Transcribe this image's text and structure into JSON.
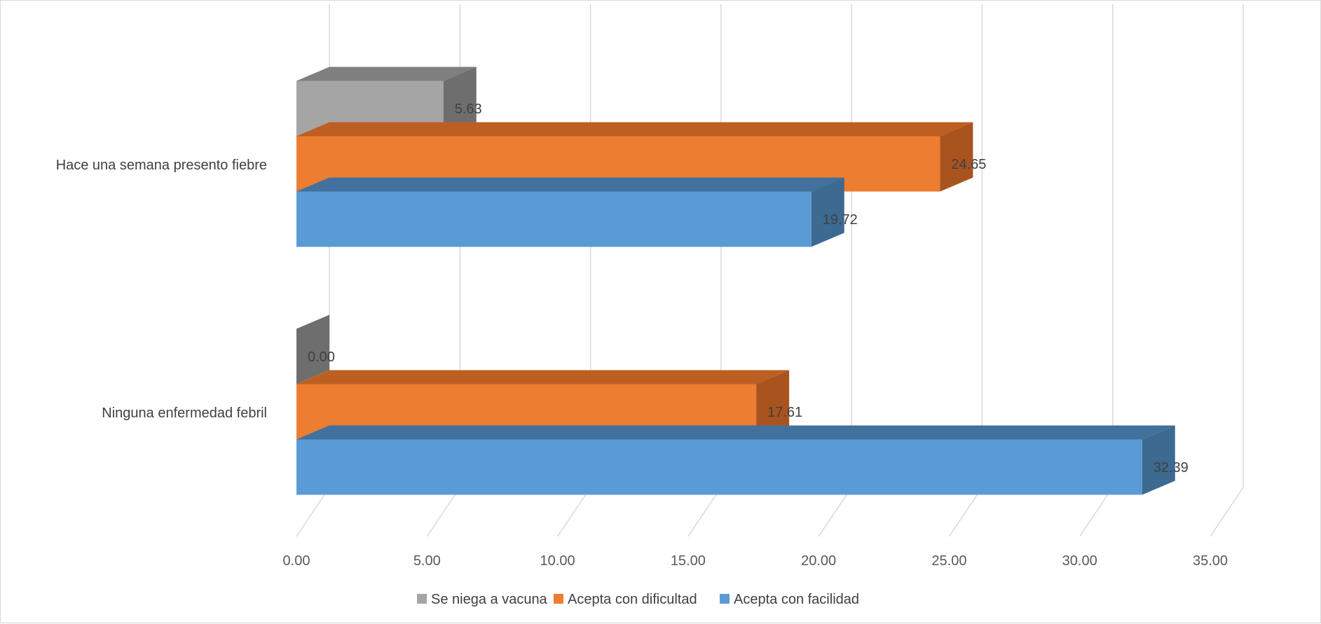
{
  "chart_data": {
    "type": "bar",
    "orientation": "horizontal",
    "style": "3d-clustered",
    "categories": [
      "Ninguna enfermedad febril",
      "Hace una semana presento fiebre"
    ],
    "series": [
      {
        "name": "Acepta con facilidad",
        "values": [
          32.39,
          19.72
        ],
        "labels": [
          "32.39",
          "19.72"
        ],
        "color": "#5B9BD5",
        "side_color": "#3D6A91",
        "top_color": "#41719C"
      },
      {
        "name": "Acepta con dificultad",
        "values": [
          17.61,
          24.65
        ],
        "labels": [
          "17.61",
          "24.65"
        ],
        "color": "#ED7D31",
        "side_color": "#A9531F",
        "top_color": "#BD5F22"
      },
      {
        "name": "Se niega a vacuna",
        "values": [
          0.0,
          5.63
        ],
        "labels": [
          "0.00",
          "5.63"
        ],
        "color": "#A5A5A5",
        "side_color": "#6E6E6E",
        "top_color": "#7F7F7F"
      }
    ],
    "xlim": [
      0,
      35
    ],
    "xticks": [
      0,
      5,
      10,
      15,
      20,
      25,
      30,
      35
    ],
    "xtick_labels": [
      "0.00",
      "5.00",
      "10.00",
      "15.00",
      "20.00",
      "25.00",
      "30.00",
      "35.00"
    ],
    "grid": true,
    "gridline_color": "#D9D9D9",
    "legend_position": "bottom",
    "legend_order": [
      "Se niega a vacuna",
      "Acepta con dificultad",
      "Acepta con facilidad"
    ],
    "title": "",
    "xlabel": "",
    "ylabel": ""
  }
}
